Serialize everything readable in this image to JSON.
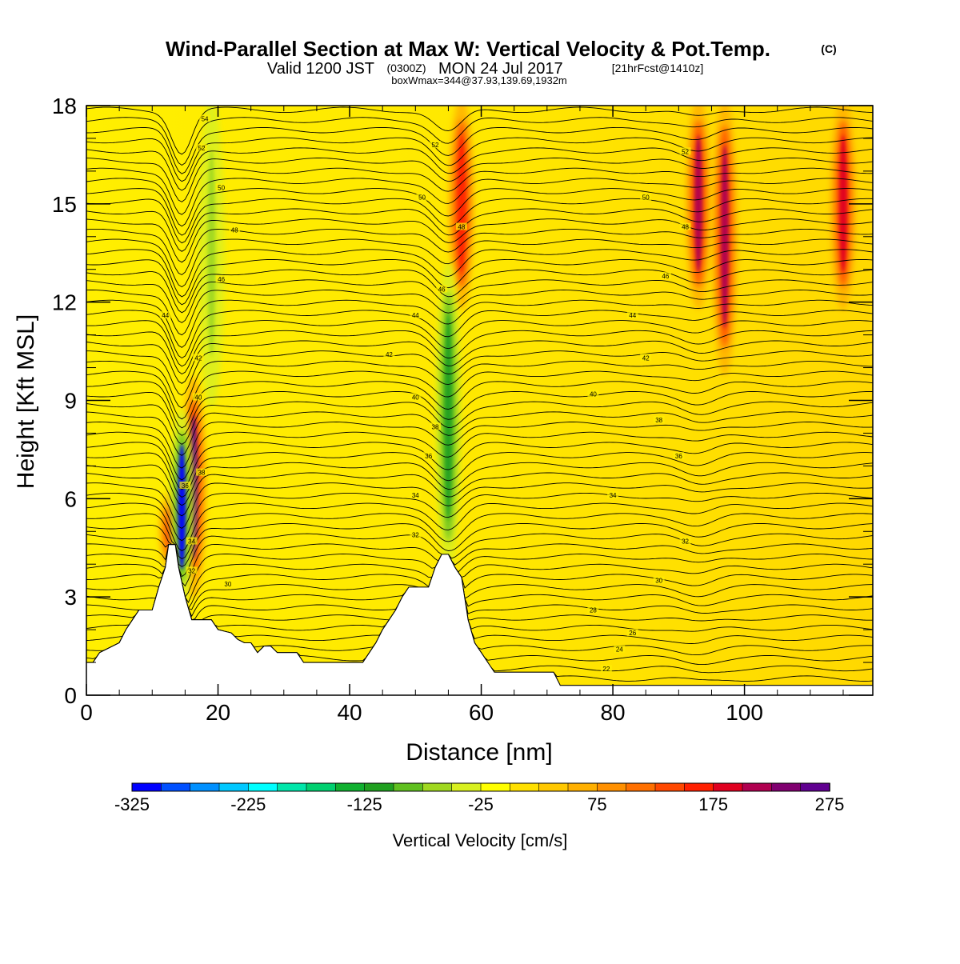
{
  "header": {
    "title": "Wind-Parallel Section at Max W: Vertical Velocity & Pot.Temp.",
    "copyright": "(C)",
    "valid_prefix": "Valid 1200 JST",
    "utc": "(0300Z)",
    "valid_date": "MON 24 Jul 2017",
    "forecast": "[21hrFcst@1410z]",
    "boxwmax": "boxWmax=344@37.93,139.69,1932m"
  },
  "chart_data": {
    "type": "heatmap",
    "xlabel": "Distance [nm]",
    "ylabel": "Height [Kft MSL]",
    "xlim": [
      0,
      119.5
    ],
    "ylim": [
      0,
      18
    ],
    "xticks": [
      0,
      20,
      40,
      60,
      80,
      100
    ],
    "yticks": [
      0,
      3,
      6,
      9,
      12,
      15,
      18
    ],
    "colorbar": {
      "label": "Vertical Velocity [cm/s]",
      "tick_labels": [
        "-325",
        "-225",
        "-125",
        "-25",
        "75",
        "175",
        "275"
      ],
      "tick_values": [
        -325,
        -225,
        -125,
        -25,
        75,
        175,
        275
      ],
      "range": [
        -325,
        275
      ],
      "step": 25,
      "colors": [
        "#0000ff",
        "#0050ff",
        "#0090ff",
        "#00c8ff",
        "#00ffff",
        "#00e6aa",
        "#00d070",
        "#10b030",
        "#20a020",
        "#60c020",
        "#a0d820",
        "#d8f020",
        "#ffff00",
        "#ffe000",
        "#ffc800",
        "#ffb000",
        "#ff9000",
        "#ff7000",
        "#ff4800",
        "#ff2000",
        "#e00020",
        "#b00050",
        "#800070",
        "#600090"
      ]
    },
    "terrain_kft": [
      [
        0,
        1.0
      ],
      [
        1,
        1.0
      ],
      [
        2,
        1.3
      ],
      [
        5,
        1.6
      ],
      [
        6,
        2.0
      ],
      [
        7,
        2.3
      ],
      [
        8,
        2.6
      ],
      [
        10,
        2.6
      ],
      [
        11,
        3.3
      ],
      [
        12,
        3.9
      ],
      [
        12.5,
        4.6
      ],
      [
        13.5,
        4.6
      ],
      [
        14,
        3.9
      ],
      [
        15,
        3.0
      ],
      [
        16,
        2.3
      ],
      [
        19,
        2.3
      ],
      [
        20,
        2.0
      ],
      [
        22,
        1.9
      ],
      [
        23,
        1.7
      ],
      [
        24,
        1.6
      ],
      [
        25,
        1.6
      ],
      [
        26,
        1.3
      ],
      [
        27,
        1.5
      ],
      [
        28,
        1.5
      ],
      [
        29,
        1.3
      ],
      [
        32,
        1.3
      ],
      [
        33,
        1.0
      ],
      [
        41,
        1.0
      ],
      [
        42,
        1.0
      ],
      [
        43,
        1.3
      ],
      [
        44,
        1.6
      ],
      [
        45,
        2.0
      ],
      [
        46,
        2.3
      ],
      [
        47,
        2.6
      ],
      [
        48,
        3.0
      ],
      [
        49,
        3.3
      ],
      [
        52,
        3.3
      ],
      [
        53,
        3.9
      ],
      [
        54,
        4.3
      ],
      [
        55,
        4.3
      ],
      [
        56,
        3.9
      ],
      [
        57,
        3.6
      ],
      [
        58,
        2.3
      ],
      [
        59,
        1.6
      ],
      [
        60,
        1.3
      ],
      [
        61,
        1.0
      ],
      [
        62,
        0.7
      ],
      [
        65,
        0.7
      ],
      [
        71,
        0.7
      ],
      [
        72,
        0.3
      ],
      [
        119.5,
        0.3
      ]
    ],
    "theta_contours": [
      {
        "label": "54",
        "x": 18,
        "y": 17.6
      },
      {
        "label": "52",
        "x": 17.5,
        "y": 16.7
      },
      {
        "label": "50",
        "x": 20.5,
        "y": 15.5
      },
      {
        "label": "48",
        "x": 22.5,
        "y": 14.2
      },
      {
        "label": "46",
        "x": 20.5,
        "y": 12.7
      },
      {
        "label": "44",
        "x": 12,
        "y": 11.6
      },
      {
        "label": "42",
        "x": 17,
        "y": 10.3
      },
      {
        "label": "40",
        "x": 17,
        "y": 9.1
      },
      {
        "label": "38",
        "x": 17.5,
        "y": 6.8
      },
      {
        "label": "36",
        "x": 15,
        "y": 6.4
      },
      {
        "label": "34",
        "x": 16,
        "y": 4.7
      },
      {
        "label": "32",
        "x": 16,
        "y": 3.8
      },
      {
        "label": "30",
        "x": 21.5,
        "y": 3.4
      },
      {
        "label": "52",
        "x": 53,
        "y": 16.8
      },
      {
        "label": "50",
        "x": 51,
        "y": 15.2
      },
      {
        "label": "48",
        "x": 57,
        "y": 14.3
      },
      {
        "label": "46",
        "x": 54,
        "y": 12.4
      },
      {
        "label": "44",
        "x": 50,
        "y": 11.6
      },
      {
        "label": "42",
        "x": 46,
        "y": 10.4
      },
      {
        "label": "40",
        "x": 50,
        "y": 9.1
      },
      {
        "label": "38",
        "x": 53,
        "y": 8.2
      },
      {
        "label": "36",
        "x": 52,
        "y": 7.3
      },
      {
        "label": "34",
        "x": 50,
        "y": 6.1
      },
      {
        "label": "32",
        "x": 50,
        "y": 4.9
      },
      {
        "label": "52",
        "x": 91,
        "y": 16.6
      },
      {
        "label": "50",
        "x": 85,
        "y": 15.2
      },
      {
        "label": "48",
        "x": 91,
        "y": 14.3
      },
      {
        "label": "46",
        "x": 88,
        "y": 12.8
      },
      {
        "label": "44",
        "x": 83,
        "y": 11.6
      },
      {
        "label": "42",
        "x": 85,
        "y": 10.3
      },
      {
        "label": "40",
        "x": 77,
        "y": 9.2
      },
      {
        "label": "38",
        "x": 87,
        "y": 8.4
      },
      {
        "label": "36",
        "x": 90,
        "y": 7.3
      },
      {
        "label": "34",
        "x": 80,
        "y": 6.1
      },
      {
        "label": "32",
        "x": 91,
        "y": 4.7
      },
      {
        "label": "30",
        "x": 87,
        "y": 3.5
      },
      {
        "label": "28",
        "x": 77,
        "y": 2.6
      },
      {
        "label": "26",
        "x": 83,
        "y": 1.9
      },
      {
        "label": "24",
        "x": 81,
        "y": 1.4
      },
      {
        "label": "22",
        "x": 79,
        "y": 0.8
      }
    ],
    "updraft_cores": [
      {
        "x": 16.3,
        "y_bottom": 3.2,
        "y_top": 9.5,
        "w_cm_s": 275
      },
      {
        "x": 13,
        "y_bottom": 4.0,
        "y_top": 6.0,
        "w_cm_s": 150
      },
      {
        "x": 57,
        "y_bottom": 12,
        "y_top": 18,
        "w_cm_s": 150
      },
      {
        "x": 93,
        "y_bottom": 12,
        "y_top": 18,
        "w_cm_s": 200
      },
      {
        "x": 97,
        "y_bottom": 10,
        "y_top": 18,
        "w_cm_s": 200
      },
      {
        "x": 115,
        "y_bottom": 12,
        "y_top": 18,
        "w_cm_s": 175
      }
    ],
    "downdraft_cores": [
      {
        "x": 14.5,
        "y_bottom": 3.0,
        "y_top": 8.5,
        "w_cm_s": -325
      },
      {
        "x": 55,
        "y_bottom": 4.0,
        "y_top": 13,
        "w_cm_s": -125
      },
      {
        "x": 19,
        "y_bottom": 9,
        "y_top": 18,
        "w_cm_s": -75
      }
    ]
  }
}
